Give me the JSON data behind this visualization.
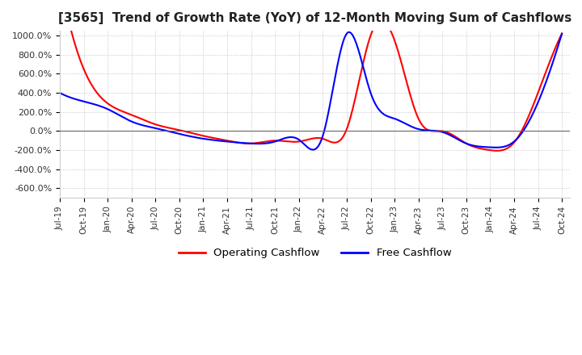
{
  "title": "[3565]  Trend of Growth Rate (YoY) of 12-Month Moving Sum of Cashflows",
  "title_fontsize": 11,
  "ylim": [
    -700,
    1050
  ],
  "yticks": [
    -600,
    -400,
    -200,
    0,
    200,
    400,
    600,
    800,
    1000
  ],
  "ytick_labels": [
    "-600.0%",
    "-400.0%",
    "-200.0%",
    "0.0%",
    "200.0%",
    "400.0%",
    "600.0%",
    "800.0%",
    "1000.0%"
  ],
  "background_color": "#ffffff",
  "plot_bg_color": "#ffffff",
  "grid_color": "#aaaaaa",
  "legend_labels": [
    "Operating Cashflow",
    "Free Cashflow"
  ],
  "legend_colors": [
    "#ff0000",
    "#0000ff"
  ],
  "operating_cashflow": {
    "dates_num": [
      0,
      3,
      6,
      9,
      12,
      15,
      18,
      21,
      24,
      27,
      30,
      33,
      36,
      39,
      42,
      45,
      48,
      51,
      54,
      57,
      60,
      63
    ],
    "values": [
      1600,
      650,
      290,
      170,
      70,
      10,
      -50,
      -100,
      -130,
      -100,
      -110,
      -80,
      20,
      1000,
      950,
      130,
      0,
      -130,
      -200,
      -120,
      400,
      1020
    ]
  },
  "free_cashflow": {
    "dates_num": [
      0,
      3,
      6,
      9,
      12,
      15,
      18,
      21,
      24,
      27,
      30,
      33,
      36,
      39,
      42,
      45,
      48,
      51,
      54,
      57,
      60,
      63
    ],
    "values": [
      400,
      310,
      230,
      100,
      30,
      -30,
      -80,
      -110,
      -130,
      -110,
      -90,
      -50,
      1020,
      400,
      130,
      20,
      -10,
      -130,
      -170,
      -110,
      300,
      1020
    ]
  },
  "x_tick_labels": [
    "Jul-19",
    "Oct-19",
    "Jan-20",
    "Apr-20",
    "Jul-20",
    "Oct-20",
    "Jan-21",
    "Apr-21",
    "Jul-21",
    "Oct-21",
    "Jan-22",
    "Apr-22",
    "Jul-22",
    "Oct-22",
    "Jan-23",
    "Apr-23",
    "Jul-23",
    "Oct-23",
    "Jan-24",
    "Apr-24",
    "Jul-24",
    "Oct-24"
  ]
}
